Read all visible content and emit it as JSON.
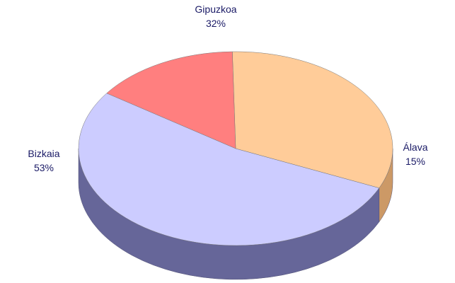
{
  "chart_data": {
    "type": "pie",
    "categories": [
      "Gipuzkoa",
      "Álava",
      "Bizkaia"
    ],
    "values": [
      32,
      15,
      53
    ],
    "value_labels": [
      "32%",
      "15%",
      "53%"
    ],
    "colors": [
      "#ffcc99",
      "#ff7f7f",
      "#ccccff"
    ],
    "side_colors": [
      "#cc9966",
      "#993333",
      "#666699"
    ]
  }
}
